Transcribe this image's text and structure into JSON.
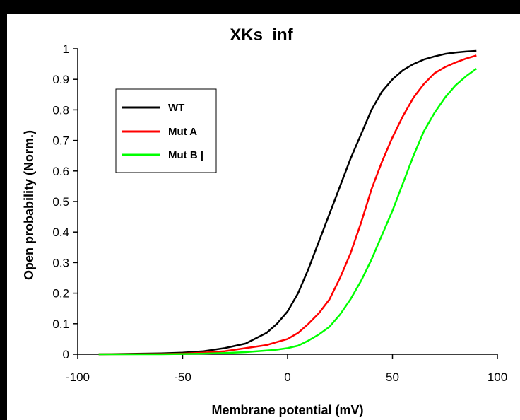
{
  "chart_data": {
    "type": "line",
    "title": "XKs_inf",
    "xlabel": "Membrane potential  (mV)",
    "ylabel": "Open probability (Norm.)",
    "xlim": [
      -100,
      100
    ],
    "ylim": [
      0,
      1
    ],
    "xticks": [
      "-100",
      "-50",
      "0",
      "50",
      "100"
    ],
    "yticks": [
      "0",
      "0.1",
      "0.2",
      "0.3",
      "0.4",
      "0.5",
      "0.6",
      "0.7",
      "0.8",
      "0.9",
      "1"
    ],
    "grid": false,
    "legend_position": "upper-left",
    "series": [
      {
        "name": "WT",
        "color": "#000000",
        "x": [
          -90,
          -60,
          -50,
          -40,
          -30,
          -20,
          -10,
          -5,
          0,
          5,
          10,
          15,
          20,
          25,
          30,
          35,
          40,
          45,
          50,
          55,
          60,
          65,
          70,
          75,
          80,
          85,
          90
        ],
        "y": [
          0.0,
          0.003,
          0.005,
          0.01,
          0.02,
          0.035,
          0.07,
          0.1,
          0.14,
          0.2,
          0.28,
          0.37,
          0.46,
          0.55,
          0.64,
          0.72,
          0.8,
          0.86,
          0.9,
          0.93,
          0.95,
          0.965,
          0.975,
          0.983,
          0.988,
          0.991,
          0.993
        ]
      },
      {
        "name": "Mut A",
        "color": "#ff0000",
        "x": [
          -90,
          -60,
          -50,
          -40,
          -30,
          -20,
          -10,
          -5,
          0,
          5,
          10,
          15,
          20,
          25,
          30,
          35,
          40,
          45,
          50,
          55,
          60,
          65,
          70,
          75,
          80,
          85,
          90
        ],
        "y": [
          0.0,
          0.001,
          0.002,
          0.005,
          0.01,
          0.02,
          0.03,
          0.04,
          0.05,
          0.07,
          0.1,
          0.135,
          0.18,
          0.25,
          0.33,
          0.43,
          0.54,
          0.63,
          0.71,
          0.78,
          0.84,
          0.885,
          0.92,
          0.94,
          0.955,
          0.968,
          0.978
        ]
      },
      {
        "name": "Mut B |",
        "color": "#00ff00",
        "x": [
          -90,
          -60,
          -50,
          -40,
          -30,
          -20,
          -10,
          -5,
          0,
          5,
          10,
          15,
          20,
          25,
          30,
          35,
          40,
          45,
          50,
          55,
          60,
          65,
          70,
          75,
          80,
          85,
          90
        ],
        "y": [
          0.0,
          0.0,
          0.001,
          0.002,
          0.004,
          0.007,
          0.012,
          0.015,
          0.02,
          0.028,
          0.045,
          0.065,
          0.09,
          0.13,
          0.18,
          0.24,
          0.31,
          0.39,
          0.47,
          0.56,
          0.65,
          0.73,
          0.79,
          0.84,
          0.88,
          0.91,
          0.935
        ]
      }
    ]
  }
}
